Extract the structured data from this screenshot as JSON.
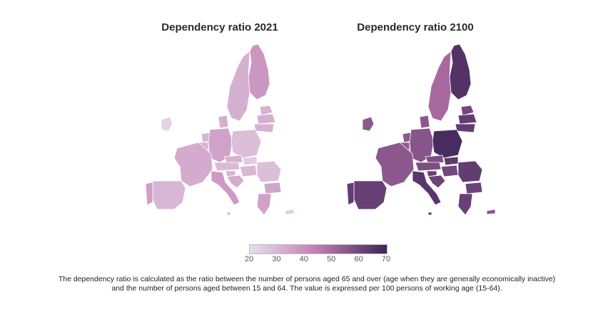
{
  "maps": [
    {
      "title": "Dependency ratio 2021",
      "countries": {
        "ireland": 23,
        "portugal": 36,
        "spain": 30,
        "france": 33,
        "belgium": 31,
        "netherlands": 30,
        "luxembourg": 22,
        "germany": 35,
        "denmark": 32,
        "sweden": 32,
        "finland": 38,
        "estonia": 31,
        "latvia": 32,
        "lithuania": 31,
        "poland": 28,
        "czechia": 31,
        "slovakia": 25,
        "austria": 29,
        "hungary": 30,
        "slovenia": 31,
        "croatia": 33,
        "romania": 28,
        "bulgaria": 34,
        "greece": 35,
        "italy": 37,
        "malta": 30,
        "cyprus": 25
      }
    },
    {
      "title": "Dependency ratio 2100",
      "countries": {
        "ireland": 55,
        "portugal": 63,
        "spain": 62,
        "france": 55,
        "belgium": 54,
        "netherlands": 55,
        "luxembourg": 52,
        "germany": 56,
        "denmark": 55,
        "sweden": 50,
        "finland": 66,
        "estonia": 60,
        "latvia": 63,
        "lithuania": 63,
        "poland": 68,
        "czechia": 58,
        "slovakia": 64,
        "austria": 58,
        "hungary": 60,
        "slovenia": 62,
        "croatia": 61,
        "romania": 63,
        "bulgaria": 61,
        "greece": 62,
        "italy": 65,
        "malta": 62,
        "cyprus": 55
      }
    }
  ],
  "legend": {
    "ticks": [
      "20",
      "30",
      "40",
      "50",
      "60",
      "70"
    ],
    "min": 20,
    "max": 70,
    "colors": [
      "#e7dfec",
      "#c27ab2",
      "#3e2558"
    ]
  },
  "caption": {
    "line1": "The dependency ratio is calculated as the ratio between the number of persons aged 65 and over (age when they are generally economically inactive)",
    "line2": "and the number of persons aged between 15 and 64. The value is expressed per 100 persons of working age (15-64)."
  }
}
